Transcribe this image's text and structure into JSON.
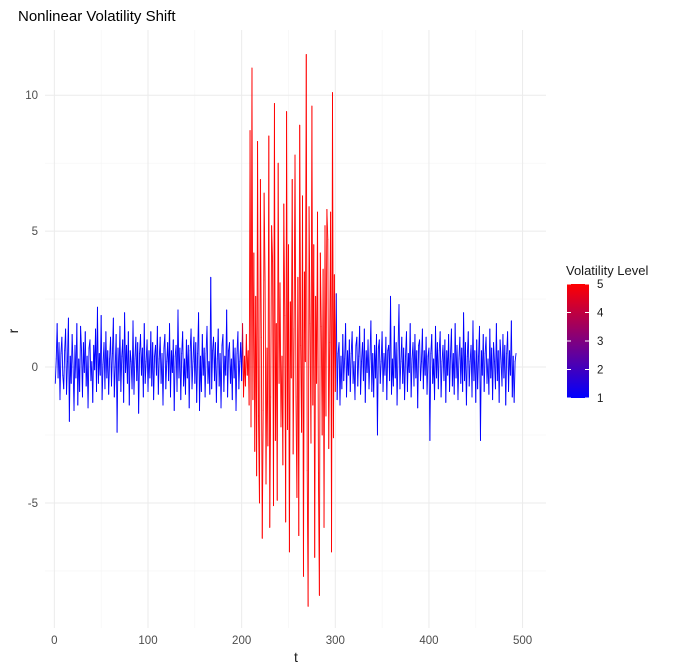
{
  "chart_data": {
    "type": "line",
    "title": "Nonlinear Volatility Shift",
    "xlabel": "t",
    "ylabel": "r",
    "xlim": [
      -10,
      525
    ],
    "ylim": [
      -9.6,
      12.4
    ],
    "x_ticks": [
      0,
      100,
      200,
      300,
      400,
      500
    ],
    "y_ticks": [
      -5,
      0,
      5,
      10
    ],
    "x_tick_labels": [
      "0",
      "100",
      "200",
      "300",
      "400",
      "500"
    ],
    "y_tick_labels": [
      "-5",
      "0",
      "5",
      "10"
    ],
    "grid": true,
    "legend": {
      "title": "Volatility Level",
      "position": "right",
      "scale": "gradient",
      "low_color": "#0000ff",
      "high_color": "#ff0000",
      "range": [
        1,
        5
      ],
      "breaks": [
        1,
        2,
        3,
        4,
        5
      ],
      "break_labels": [
        "1",
        "2",
        "3",
        "4",
        "5"
      ]
    },
    "high_volatility_window": [
      201,
      300
    ],
    "series": [
      {
        "x_start": 1,
        "x_step": 1,
        "values": [
          -0.6,
          0.3,
          1.6,
          -0.4,
          0.9,
          -1.2,
          0.5,
          1.1,
          -0.3,
          -0.8,
          0.6,
          1.4,
          -1.0,
          0.2,
          1.8,
          -2.0,
          0.4,
          -0.6,
          1.2,
          0.0,
          -1.6,
          0.8,
          -0.4,
          1.6,
          -1.4,
          0.3,
          -0.9,
          1.5,
          0.6,
          -1.1,
          0.9,
          -0.2,
          1.3,
          -0.7,
          0.4,
          -1.5,
          0.7,
          1.0,
          -0.5,
          0.2,
          -1.3,
          0.8,
          -0.1,
          1.4,
          -0.9,
          2.2,
          -0.6,
          0.5,
          -0.3,
          1.9,
          -1.2,
          0.1,
          0.9,
          -0.8,
          1.3,
          -0.4,
          0.6,
          -1.0,
          0.3,
          1.1,
          -0.7,
          0.5,
          1.8,
          -1.1,
          0.0,
          1.2,
          -2.4,
          0.7,
          -0.5,
          1.5,
          -0.9,
          0.4,
          1.0,
          -1.3,
          2.0,
          -0.2,
          0.8,
          -0.6,
          1.3,
          -1.4,
          0.6,
          0.2,
          -0.8,
          1.7,
          -1.0,
          0.3,
          1.1,
          -0.5,
          0.9,
          -1.7,
          0.5,
          1.2,
          -0.3,
          0.7,
          -1.1,
          1.6,
          -0.6,
          0.2,
          1.0,
          -0.9,
          0.6,
          -0.4,
          1.3,
          -0.7,
          0.9,
          -1.2,
          0.4,
          0.8,
          -0.3,
          1.5,
          -1.0,
          0.3,
          1.1,
          -0.6,
          0.5,
          -1.4,
          0.7,
          1.2,
          -0.8,
          0.2,
          0.9,
          -0.5,
          1.6,
          -1.1,
          0.6,
          -0.2,
          1.0,
          -1.6,
          0.4,
          0.8,
          -0.9,
          2.1,
          -0.4,
          0.7,
          -1.2,
          0.5,
          1.3,
          -0.7,
          0.3,
          -1.0,
          1.0,
          -0.4,
          0.8,
          -1.5,
          0.6,
          1.4,
          -0.8,
          0.2,
          1.1,
          -0.6,
          0.9,
          -1.3,
          0.5,
          2.0,
          -1.6,
          0.4,
          -0.9,
          1.2,
          -0.3,
          0.7,
          -1.1,
          0.5,
          1.5,
          -0.6,
          0.2,
          -1.0,
          3.3,
          -0.8,
          0.6,
          1.1,
          -0.5,
          0.9,
          -1.3,
          0.3,
          1.4,
          -0.7,
          0.5,
          -1.5,
          0.8,
          1.2,
          -0.9,
          0.4,
          -0.3,
          2.1,
          -1.1,
          0.6,
          0.9,
          -0.6,
          0.3,
          -1.2,
          1.0,
          -0.4,
          0.7,
          -1.6,
          0.5,
          1.3,
          -0.8,
          0.2,
          0.9,
          -0.5,
          1.6,
          -1.1,
          0.4,
          -0.7,
          1.2,
          -0.3,
          0.6,
          -1.4,
          8.7,
          -2.2,
          11.0,
          -1.2,
          4.2,
          -3.1,
          2.6,
          -4.0,
          8.3,
          -1.8,
          -5.0,
          6.9,
          1.1,
          -6.3,
          -1.6,
          6.4,
          3.2,
          -4.3,
          0.7,
          -2.9,
          8.5,
          -5.9,
          -1.1,
          5.2,
          3.9,
          -5.1,
          9.7,
          -2.7,
          1.6,
          -4.9,
          7.5,
          -0.6,
          3.1,
          -2.2,
          0.4,
          -3.6,
          6.0,
          1.9,
          -5.7,
          9.4,
          -2.3,
          4.5,
          -6.8,
          2.4,
          -0.4,
          6.9,
          -3.2,
          1.4,
          7.8,
          -1.1,
          -4.8,
          3.3,
          -6.2,
          8.9,
          0.8,
          -2.4,
          6.3,
          -7.7,
          3.5,
          0.2,
          11.5,
          -3.8,
          -8.8,
          5.9,
          1.6,
          -2.8,
          9.6,
          -1.4,
          4.5,
          -7.0,
          2.6,
          -0.6,
          5.7,
          -3.9,
          -8.4,
          4.2,
          1.5,
          -2.5,
          3.6,
          -5.9,
          5.2,
          -1.8,
          5.8,
          4.7,
          -3.0,
          0.9,
          5.7,
          -6.8,
          10.1,
          -2.6,
          3.4,
          -0.9,
          2.7,
          -1.2,
          0.5,
          0.9,
          -1.4,
          0.4,
          -0.8,
          1.2,
          -0.5,
          0.3,
          1.6,
          -1.1,
          0.6,
          -0.3,
          1.0,
          -0.9,
          0.5,
          1.3,
          -0.6,
          0.2,
          -1.2,
          0.8,
          1.1,
          -0.7,
          0.4,
          1.5,
          -1.0,
          0.2,
          0.9,
          -0.5,
          1.4,
          -1.3,
          0.6,
          -0.2,
          1.0,
          -0.8,
          0.3,
          1.7,
          -0.9,
          0.5,
          -1.1,
          0.8,
          -0.4,
          1.2,
          -2.5,
          0.7,
          1.0,
          -0.6,
          0.2,
          1.3,
          -0.9,
          0.5,
          -0.3,
          1.1,
          -1.2,
          0.6,
          0.8,
          -0.5,
          2.6,
          -1.0,
          0.3,
          -0.7,
          1.5,
          -0.4,
          0.9,
          -1.4,
          0.6,
          2.3,
          -0.8,
          0.2,
          1.1,
          -0.6,
          0.7,
          -1.2,
          0.4,
          1.3,
          -0.9,
          0.5,
          -0.2,
          1.6,
          -1.1,
          0.3,
          0.9,
          -0.7,
          1.2,
          -0.4,
          0.6,
          -1.5,
          0.8,
          1.0,
          -0.5,
          0.2,
          1.4,
          -0.8,
          0.6,
          -0.3,
          1.1,
          -1.0,
          0.4,
          0.7,
          -2.7,
          0.5,
          1.2,
          -0.6,
          0.3,
          -1.2,
          1.5,
          -0.4,
          0.9,
          -0.8,
          0.6,
          1.3,
          -1.1,
          0.2,
          0.8,
          -0.5,
          1.0,
          -1.3,
          0.6,
          -0.3,
          1.2,
          -0.9,
          0.4,
          1.4,
          -0.7,
          0.5,
          -1.0,
          1.6,
          -0.4,
          0.8,
          -1.2,
          0.3,
          1.1,
          -0.6,
          0.7,
          -0.9,
          2.0,
          -0.5,
          0.9,
          -1.4,
          0.4,
          1.3,
          -0.7,
          0.2,
          0.8,
          -1.1,
          1.7,
          -0.5,
          0.6,
          -1.3,
          1.0,
          -0.8,
          0.4,
          1.5,
          -2.7,
          0.6,
          -0.3,
          1.2,
          -0.9,
          0.5,
          1.1,
          -0.6,
          0.3,
          -1.0,
          1.4,
          -0.4,
          0.7,
          -1.2,
          0.9,
          0.2,
          -0.8,
          1.6,
          -0.5,
          0.6,
          -1.3,
          1.0,
          0.3,
          -0.7,
          1.2,
          -0.4,
          0.8,
          -1.4,
          0.5,
          1.3,
          -0.9,
          0.6,
          -0.3,
          1.7,
          -1.1,
          0.4,
          -1.3,
          0.2,
          0.5
        ]
      }
    ]
  }
}
